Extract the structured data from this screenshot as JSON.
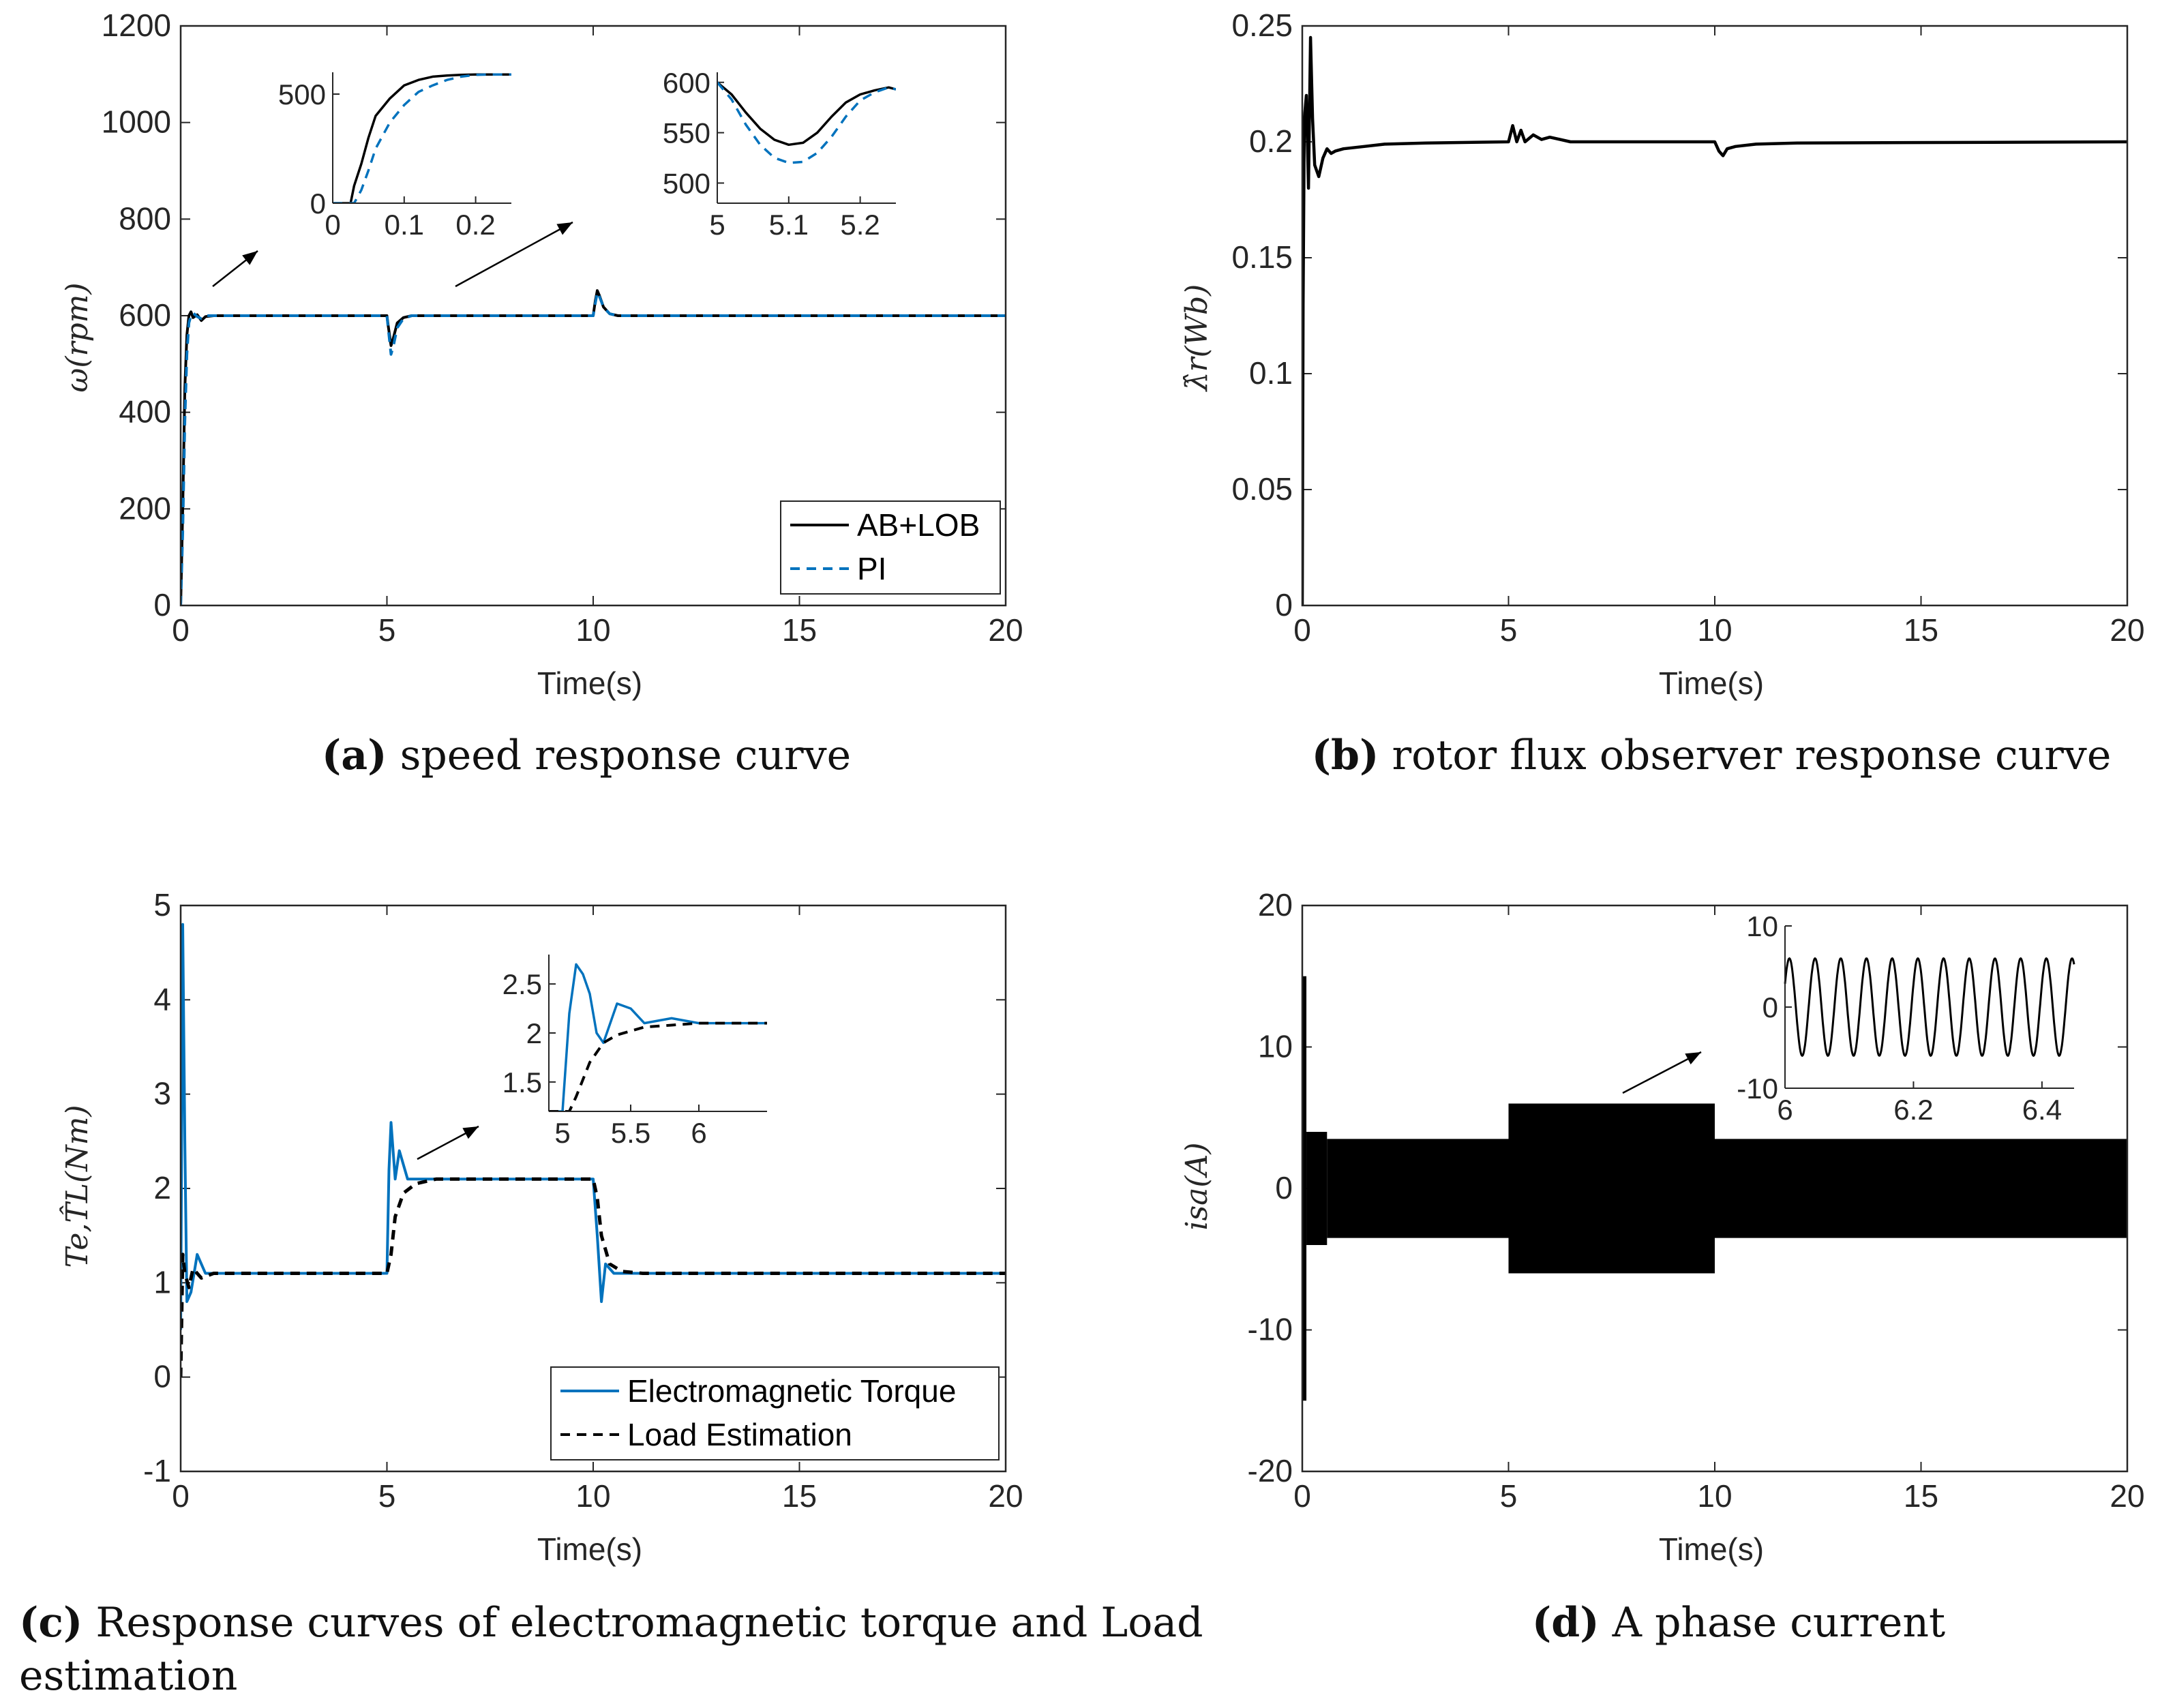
{
  "colors": {
    "black": "#000000",
    "blue": "#0072bd",
    "axis": "#262626"
  },
  "chart_data": [
    {
      "id": "a",
      "type": "line",
      "caption_label": "(a)",
      "caption_text": " speed response curve",
      "xlabel": "Time(s)",
      "ylabel": "ω(rpm)",
      "xlim": [
        0,
        20
      ],
      "ylim": [
        0,
        1200
      ],
      "xticks": [
        "0",
        "5",
        "10",
        "15",
        "20"
      ],
      "yticks": [
        "0",
        "200",
        "400",
        "600",
        "800",
        "1000",
        "1200"
      ],
      "legend": {
        "position": "bottom-right",
        "entries": [
          "AB+LOB",
          "PI"
        ]
      },
      "series": [
        {
          "name": "AB+LOB",
          "color": "black",
          "style": "solid",
          "x": [
            0,
            0.05,
            0.1,
            0.15,
            0.2,
            0.25,
            0.3,
            0.4,
            0.5,
            0.6,
            0.8,
            1,
            5,
            5.03,
            5.1,
            5.15,
            5.25,
            5.4,
            5.6,
            6,
            10,
            10.05,
            10.1,
            10.15,
            10.25,
            10.4,
            10.6,
            11,
            20
          ],
          "y": [
            0,
            200,
            450,
            560,
            600,
            608,
            596,
            602,
            590,
            598,
            600,
            600,
            600,
            580,
            538,
            552,
            585,
            596,
            600,
            600,
            600,
            630,
            652,
            642,
            618,
            604,
            600,
            600,
            600
          ]
        },
        {
          "name": "PI",
          "color": "blue",
          "style": "dashed",
          "x": [
            0,
            0.05,
            0.1,
            0.15,
            0.2,
            0.25,
            0.3,
            0.4,
            0.5,
            0.6,
            0.8,
            1,
            5,
            5.03,
            5.1,
            5.15,
            5.25,
            5.4,
            5.6,
            6,
            10,
            10.05,
            10.1,
            10.15,
            10.25,
            10.4,
            10.6,
            11,
            20
          ],
          "y": [
            0,
            150,
            380,
            520,
            585,
            600,
            606,
            598,
            594,
            600,
            600,
            600,
            600,
            575,
            520,
            535,
            575,
            594,
            600,
            600,
            600,
            625,
            648,
            640,
            618,
            604,
            600,
            600,
            600
          ]
        }
      ],
      "insets": [
        {
          "xlim": [
            0,
            0.25
          ],
          "ylim": [
            0,
            600
          ],
          "xticks": [
            "0",
            "0.1",
            "0.2"
          ],
          "yticks": [
            "0",
            "500"
          ],
          "series": [
            {
              "name": "AB+LOB",
              "x": [
                0,
                0.025,
                0.03,
                0.04,
                0.05,
                0.06,
                0.08,
                0.1,
                0.12,
                0.14,
                0.16,
                0.18,
                0.2,
                0.22,
                0.25
              ],
              "y": [
                0,
                0,
                80,
                180,
                300,
                400,
                480,
                540,
                565,
                580,
                585,
                588,
                590,
                590,
                590
              ]
            },
            {
              "name": "PI",
              "x": [
                0,
                0.03,
                0.04,
                0.05,
                0.06,
                0.08,
                0.1,
                0.12,
                0.14,
                0.16,
                0.18,
                0.2,
                0.22,
                0.25
              ],
              "y": [
                0,
                0,
                60,
                150,
                250,
                370,
                450,
                510,
                540,
                565,
                580,
                588,
                590,
                590
              ]
            }
          ]
        },
        {
          "xlim": [
            5,
            5.25
          ],
          "ylim": [
            480,
            610
          ],
          "xticks": [
            "5",
            "5.1",
            "5.2"
          ],
          "yticks": [
            "500",
            "550",
            "600"
          ],
          "series": [
            {
              "name": "AB+LOB",
              "x": [
                5,
                5.02,
                5.04,
                5.06,
                5.08,
                5.1,
                5.12,
                5.14,
                5.16,
                5.18,
                5.2,
                5.22,
                5.24,
                5.25
              ],
              "y": [
                600,
                588,
                570,
                554,
                543,
                538,
                540,
                550,
                566,
                580,
                588,
                592,
                595,
                593
              ]
            },
            {
              "name": "PI",
              "x": [
                5,
                5.02,
                5.04,
                5.06,
                5.08,
                5.1,
                5.12,
                5.14,
                5.16,
                5.18,
                5.2,
                5.22,
                5.24,
                5.25
              ],
              "y": [
                600,
                583,
                558,
                538,
                525,
                520,
                521,
                530,
                546,
                566,
                582,
                590,
                595,
                593
              ]
            }
          ]
        }
      ]
    },
    {
      "id": "b",
      "type": "line",
      "caption_label": "(b)",
      "caption_text": " rotor flux observer response curve",
      "xlabel": "Time(s)",
      "ylabel": "λ̂r(Wb)",
      "xlim": [
        0,
        20
      ],
      "ylim": [
        0,
        0.25
      ],
      "xticks": [
        "0",
        "5",
        "10",
        "15",
        "20"
      ],
      "yticks": [
        "0",
        "0.05",
        "0.1",
        "0.15",
        "0.2",
        "0.25"
      ],
      "series": [
        {
          "name": "rotor flux",
          "color": "black",
          "style": "solid",
          "x": [
            0,
            0.02,
            0.05,
            0.1,
            0.15,
            0.2,
            0.25,
            0.3,
            0.4,
            0.5,
            0.6,
            0.7,
            0.8,
            1,
            1.5,
            2,
            3,
            5,
            5.1,
            5.2,
            5.3,
            5.4,
            5.6,
            5.8,
            6,
            6.5,
            10,
            10.1,
            10.2,
            10.3,
            10.5,
            11,
            12,
            20
          ],
          "y": [
            0,
            0.13,
            0.21,
            0.22,
            0.18,
            0.245,
            0.21,
            0.19,
            0.185,
            0.193,
            0.197,
            0.195,
            0.196,
            0.197,
            0.198,
            0.199,
            0.1995,
            0.2,
            0.207,
            0.2,
            0.205,
            0.2,
            0.203,
            0.201,
            0.202,
            0.2,
            0.2,
            0.196,
            0.194,
            0.197,
            0.198,
            0.199,
            0.1995,
            0.2
          ]
        }
      ]
    },
    {
      "id": "c",
      "type": "line",
      "caption_label": "(c)",
      "caption_text": " Response curves of electromagnetic torque and Load",
      "caption_text2": "estimation",
      "xlabel": "Time(s)",
      "ylabel": "Te,T̂L(Nm)",
      "xlim": [
        0,
        20
      ],
      "ylim": [
        -1,
        5
      ],
      "xticks": [
        "0",
        "5",
        "10",
        "15",
        "20"
      ],
      "yticks": [
        "-1",
        "0",
        "1",
        "2",
        "3",
        "4",
        "5"
      ],
      "legend": {
        "position": "bottom-right",
        "entries": [
          "Electromagnetic Torque",
          "Load Estimation"
        ]
      },
      "series": [
        {
          "name": "Electromagnetic Torque",
          "color": "blue",
          "style": "solid",
          "x": [
            0,
            0.05,
            0.1,
            0.15,
            0.25,
            0.4,
            0.6,
            1,
            5,
            5.05,
            5.1,
            5.2,
            5.3,
            5.5,
            6,
            10,
            10.1,
            10.2,
            10.3,
            10.5,
            11,
            20
          ],
          "y": [
            0.5,
            4.8,
            2.5,
            0.8,
            0.9,
            1.3,
            1.1,
            1.1,
            1.1,
            2.2,
            2.7,
            2.1,
            2.4,
            2.1,
            2.1,
            2.1,
            1.5,
            0.8,
            1.2,
            1.1,
            1.1,
            1.1
          ]
        },
        {
          "name": "Load Estimation",
          "color": "black",
          "style": "dashed",
          "x": [
            0,
            0.05,
            0.1,
            0.2,
            0.3,
            0.5,
            0.8,
            1.2,
            2,
            5,
            5.1,
            5.2,
            5.4,
            5.7,
            6.2,
            7,
            10,
            10.1,
            10.2,
            10.4,
            10.7,
            11.2,
            12,
            20
          ],
          "y": [
            0,
            1.3,
            1.1,
            0.95,
            1.15,
            1.05,
            1.1,
            1.1,
            1.1,
            1.1,
            1.3,
            1.7,
            1.95,
            2.05,
            2.1,
            2.1,
            2.1,
            1.9,
            1.5,
            1.2,
            1.12,
            1.1,
            1.1,
            1.1
          ]
        }
      ],
      "insets": [
        {
          "xlim": [
            4.9,
            6.5
          ],
          "ylim": [
            1.2,
            2.8
          ],
          "xticks": [
            "5",
            "5.5",
            "6"
          ],
          "yticks": [
            "1.5",
            "2",
            "2.5"
          ],
          "series": [
            {
              "name": "Electromagnetic Torque",
              "x": [
                4.9,
                5.0,
                5.05,
                5.1,
                5.15,
                5.2,
                5.25,
                5.3,
                5.4,
                5.5,
                5.6,
                5.8,
                6,
                6.2,
                6.4,
                6.5
              ],
              "y": [
                1.2,
                1.2,
                2.2,
                2.7,
                2.6,
                2.4,
                2.0,
                1.9,
                2.3,
                2.25,
                2.1,
                2.15,
                2.1,
                2.1,
                2.1,
                2.1
              ]
            },
            {
              "name": "Load Estimation",
              "x": [
                4.9,
                5.05,
                5.1,
                5.2,
                5.3,
                5.4,
                5.5,
                5.6,
                5.8,
                6,
                6.2,
                6.5
              ],
              "y": [
                1.2,
                1.2,
                1.35,
                1.7,
                1.9,
                1.98,
                2.02,
                2.06,
                2.08,
                2.1,
                2.1,
                2.1
              ]
            }
          ]
        }
      ]
    },
    {
      "id": "d",
      "type": "line",
      "caption_label": "(d)",
      "caption_text": " A phase current",
      "xlabel": "Time(s)",
      "ylabel": "isa(A)",
      "xlim": [
        0,
        20
      ],
      "ylim": [
        -20,
        20
      ],
      "xticks": [
        "0",
        "5",
        "10",
        "15",
        "20"
      ],
      "yticks": [
        "-20",
        "-10",
        "0",
        "10",
        "20"
      ],
      "series": [
        {
          "name": "A phase current",
          "color": "black",
          "style": "solid",
          "envelope": [
            {
              "x0": 0,
              "x1": 0.1,
              "amp": 15
            },
            {
              "x0": 0.1,
              "x1": 0.6,
              "amp": 4
            },
            {
              "x0": 0.6,
              "x1": 5,
              "amp": 3.5
            },
            {
              "x0": 5,
              "x1": 10,
              "amp": 6
            },
            {
              "x0": 10,
              "x1": 20,
              "amp": 3.5
            }
          ]
        }
      ],
      "insets": [
        {
          "xlim": [
            6,
            6.45
          ],
          "ylim": [
            -10,
            10
          ],
          "xticks": [
            "6",
            "6.2",
            "6.4"
          ],
          "yticks": [
            "-10",
            "0",
            "10"
          ],
          "series": [
            {
              "name": "A phase current",
              "amplitude": 6,
              "frequency_hz": 25
            }
          ]
        }
      ]
    }
  ]
}
